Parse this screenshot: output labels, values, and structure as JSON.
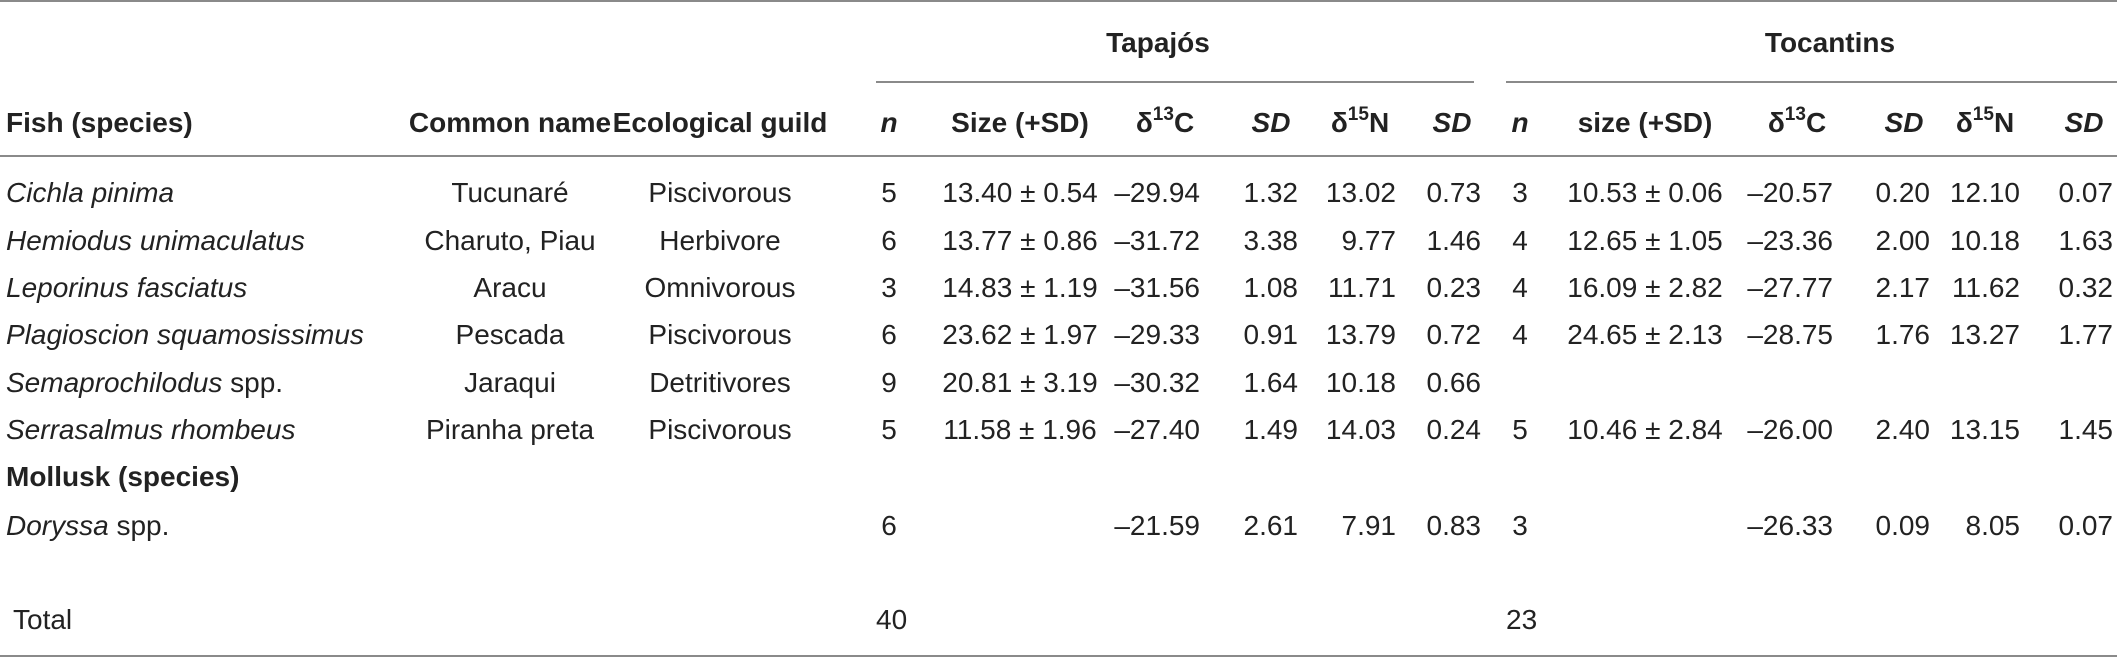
{
  "groups": {
    "tapajos": "Tapajós",
    "tocantins": "Tocantins"
  },
  "headers": {
    "species": "Fish (species)",
    "common": "Common name",
    "guild": "Ecological guild",
    "n": "n",
    "size_t": "Size (+SD)",
    "size_o": "size (+SD)",
    "delta": "δ",
    "c_sup": "13",
    "c": "C",
    "n_sup": "15",
    "nitro": "N",
    "sd": "SD"
  },
  "rows": [
    {
      "species": "Cichla pinima",
      "common": "Tucunaré",
      "guild": "Piscivorous",
      "t_n": "5",
      "t_size": "13.40 ± 0.54",
      "t_c": "–29.94",
      "t_csd": "1.32",
      "t_n15": "13.02",
      "t_nsd": "0.73",
      "o_n": "3",
      "o_size": "10.53 ± 0.06",
      "o_c": "–20.57",
      "o_csd": "0.20",
      "o_n15": "12.10",
      "o_nsd": "0.07"
    },
    {
      "species": "Hemiodus unimaculatus",
      "common": "Charuto, Piau",
      "guild": "Herbivore",
      "t_n": "6",
      "t_size": "13.77 ± 0.86",
      "t_c": "–31.72",
      "t_csd": "3.38",
      "t_n15": "9.77",
      "t_nsd": "1.46",
      "o_n": "4",
      "o_size": "12.65 ± 1.05",
      "o_c": "–23.36",
      "o_csd": "2.00",
      "o_n15": "10.18",
      "o_nsd": "1.63"
    },
    {
      "species": "Leporinus fasciatus",
      "common": "Aracu",
      "guild": "Omnivorous",
      "t_n": "3",
      "t_size": "14.83 ± 1.19",
      "t_c": "–31.56",
      "t_csd": "1.08",
      "t_n15": "11.71",
      "t_nsd": "0.23",
      "o_n": "4",
      "o_size": "16.09 ± 2.82",
      "o_c": "–27.77",
      "o_csd": "2.17",
      "o_n15": "11.62",
      "o_nsd": "0.32"
    },
    {
      "species": "Plagioscion squamosissimus",
      "common": "Pescada",
      "guild": "Piscivorous",
      "t_n": "6",
      "t_size": "23.62 ± 1.97",
      "t_c": "–29.33",
      "t_csd": "0.91",
      "t_n15": "13.79",
      "t_nsd": "0.72",
      "o_n": "4",
      "o_size": "24.65 ± 2.13",
      "o_c": "–28.75",
      "o_csd": "1.76",
      "o_n15": "13.27",
      "o_nsd": "1.77"
    },
    {
      "species": "Semaprochilodus",
      "species_suffix": " spp.",
      "common": "Jaraqui",
      "guild": "Detritivores",
      "t_n": "9",
      "t_size": "20.81 ± 3.19",
      "t_c": "–30.32",
      "t_csd": "1.64",
      "t_n15": "10.18",
      "t_nsd": "0.66",
      "o_n": "",
      "o_size": "",
      "o_c": "",
      "o_csd": "",
      "o_n15": "",
      "o_nsd": ""
    },
    {
      "species": "Serrasalmus rhombeus",
      "common": "Piranha preta",
      "guild": "Piscivorous",
      "t_n": "5",
      "t_size": "11.58 ± 1.96",
      "t_c": "–27.40",
      "t_csd": "1.49",
      "t_n15": "14.03",
      "t_nsd": "0.24",
      "o_n": "5",
      "o_size": "10.46 ± 2.84",
      "o_c": "–26.00",
      "o_csd": "2.40",
      "o_n15": "13.15",
      "o_nsd": "1.45"
    }
  ],
  "mollusk_header": "Mollusk (species)",
  "mollusk": {
    "species": "Doryssa",
    "species_suffix": " spp.",
    "t_n": "6",
    "t_c": "–21.59",
    "t_csd": "2.61",
    "t_n15": "7.91",
    "t_nsd": "0.83",
    "o_n": "3",
    "o_c": "–26.33",
    "o_csd": "0.09",
    "o_n15": "8.05",
    "o_nsd": "0.07"
  },
  "total": {
    "label": "Total",
    "t_n": "40",
    "o_n": "23"
  }
}
